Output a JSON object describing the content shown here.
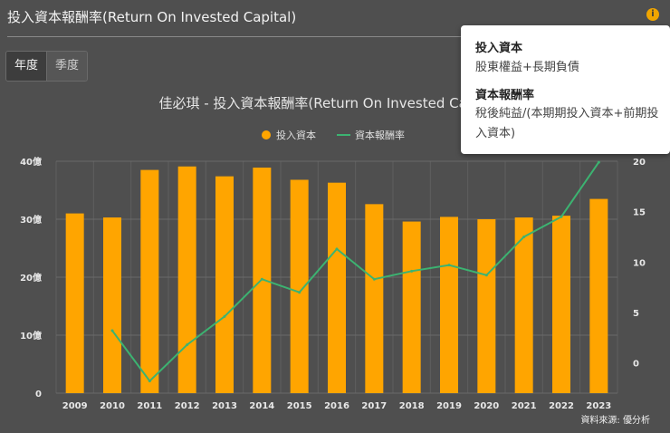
{
  "header": {
    "title": "投入資本報酬率(Return On Invested Capital)",
    "info_icon": "info-icon"
  },
  "tabs": [
    {
      "label": "年度",
      "active": true
    },
    {
      "label": "季度",
      "active": false
    }
  ],
  "popup": {
    "item1_title": "投入資本",
    "item1_desc": "股東權益+長期負債",
    "item2_title": "資本報酬率",
    "item2_desc": "稅後純益/(本期期投入資本+前期投入資本)"
  },
  "source": "資料來源: 優分析",
  "colors": {
    "bar": "#ffa500",
    "line": "#3cb371",
    "background": "#4f4f4f"
  },
  "chart_data": {
    "type": "bar",
    "title": "佳必琪 - 投入資本報酬率(Return On Invested Capital)",
    "categories": [
      "2009",
      "2010",
      "2011",
      "2012",
      "2013",
      "2014",
      "2015",
      "2016",
      "2017",
      "2018",
      "2019",
      "2020",
      "2021",
      "2022",
      "2023"
    ],
    "series": [
      {
        "name": "投入資本",
        "type": "bar",
        "axis": "left",
        "values": [
          31.0,
          30.3,
          38.5,
          39.1,
          37.4,
          38.9,
          36.8,
          36.3,
          32.6,
          29.6,
          30.4,
          30.0,
          30.3,
          30.6,
          33.5
        ]
      },
      {
        "name": "資本報酬率",
        "type": "line",
        "axis": "right",
        "values": [
          null,
          3.2,
          -1.8,
          1.8,
          4.6,
          8.3,
          7.0,
          11.3,
          8.3,
          9.1,
          9.7,
          8.7,
          12.5,
          14.5,
          19.9
        ]
      }
    ],
    "left_axis": {
      "ticks": [
        0,
        10,
        20,
        30,
        40
      ],
      "tick_labels": [
        "0",
        "10億",
        "20億",
        "30億",
        "40億"
      ],
      "ylim": [
        0,
        40
      ]
    },
    "right_axis": {
      "ticks": [
        0,
        5,
        10,
        15,
        20
      ],
      "tick_labels": [
        "0",
        "5",
        "10",
        "15",
        "20"
      ],
      "ylim": [
        -3,
        20
      ]
    },
    "grid": true,
    "legend": "top-center"
  }
}
